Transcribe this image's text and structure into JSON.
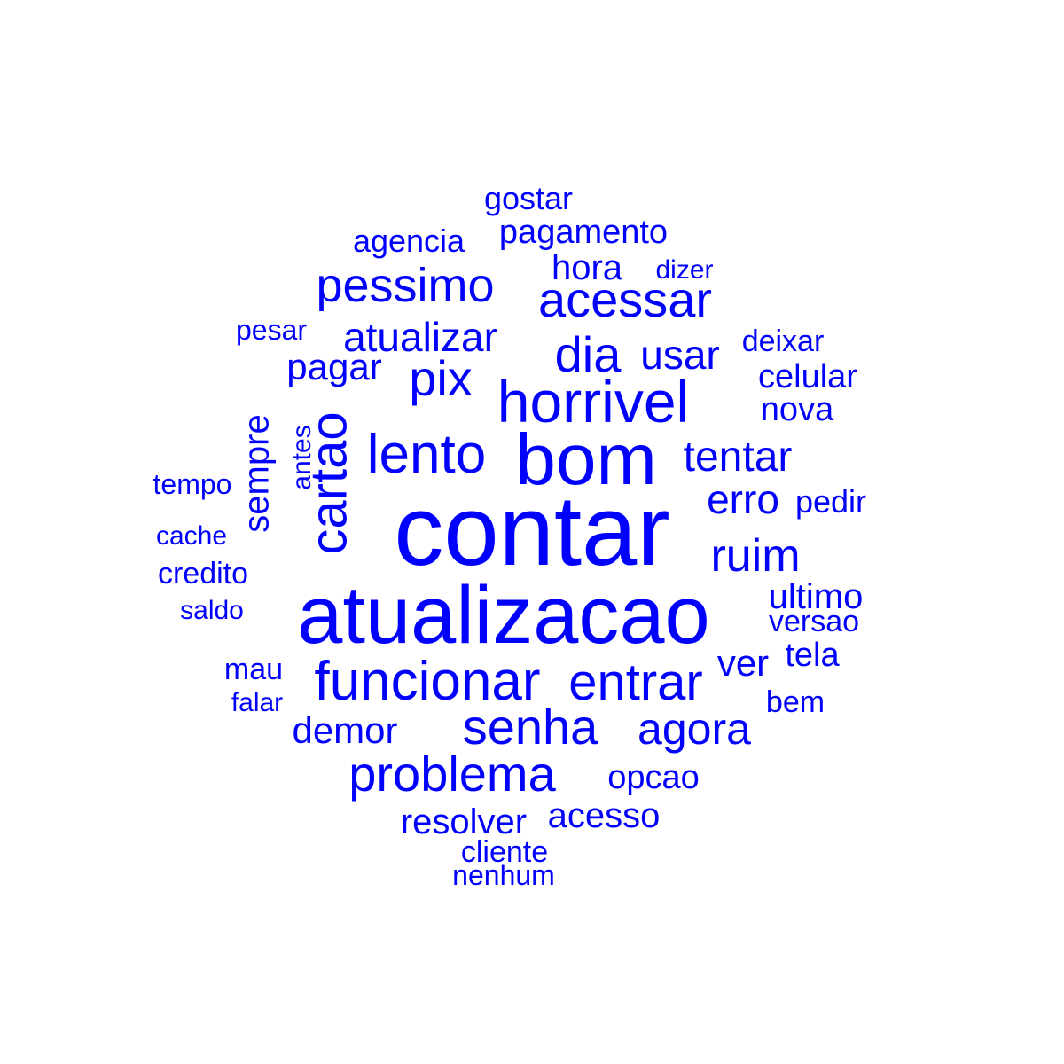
{
  "word_cloud": {
    "color": "#0000ff",
    "words": [
      {
        "text": "contar"
      },
      {
        "text": "atualizacao"
      },
      {
        "text": "bom"
      },
      {
        "text": "horrivel"
      },
      {
        "text": "lento"
      },
      {
        "text": "cartao"
      },
      {
        "text": "funcionar"
      },
      {
        "text": "entrar"
      },
      {
        "text": "senha"
      },
      {
        "text": "problema"
      },
      {
        "text": "acessar"
      },
      {
        "text": "pessimo"
      },
      {
        "text": "dia"
      },
      {
        "text": "pix"
      },
      {
        "text": "agora"
      },
      {
        "text": "ruim"
      },
      {
        "text": "tentar"
      },
      {
        "text": "erro"
      },
      {
        "text": "atualizar"
      },
      {
        "text": "usar"
      },
      {
        "text": "pagar"
      },
      {
        "text": "sempre"
      },
      {
        "text": "hora"
      },
      {
        "text": "demor"
      },
      {
        "text": "resolver"
      },
      {
        "text": "acesso"
      },
      {
        "text": "ultimo"
      },
      {
        "text": "ver"
      },
      {
        "text": "celular"
      },
      {
        "text": "opcao"
      },
      {
        "text": "pagamento"
      },
      {
        "text": "nova"
      },
      {
        "text": "tela"
      },
      {
        "text": "pedir"
      },
      {
        "text": "agencia"
      },
      {
        "text": "deixar"
      },
      {
        "text": "gostar"
      },
      {
        "text": "credito"
      },
      {
        "text": "mau"
      },
      {
        "text": "bem"
      },
      {
        "text": "versao"
      },
      {
        "text": "cliente"
      },
      {
        "text": "nenhum"
      },
      {
        "text": "dizer"
      },
      {
        "text": "tempo"
      },
      {
        "text": "cache"
      },
      {
        "text": "saldo"
      },
      {
        "text": "pesar"
      },
      {
        "text": "falar"
      },
      {
        "text": "antes"
      }
    ]
  }
}
